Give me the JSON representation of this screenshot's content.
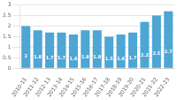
{
  "chart_data": {
    "type": "bar",
    "categories": [
      "2010-11",
      "2011-12",
      "2012-13",
      "2013-14",
      "2014-15",
      "2015-16",
      "2016-17",
      "2017-18",
      "2018-19",
      "2019-20",
      "2020-21",
      "2021-22",
      "2022-23"
    ],
    "values": [
      2.0,
      1.8,
      1.7,
      1.7,
      1.6,
      1.8,
      1.8,
      1.5,
      1.6,
      1.7,
      2.2,
      2.5,
      2.7
    ],
    "color": "#4da6d4",
    "ylim": [
      0,
      3.0
    ],
    "yticks": [
      0,
      0.5,
      1.0,
      1.5,
      2.0,
      2.5,
      3.0
    ],
    "grid": true,
    "data_labels": true
  }
}
